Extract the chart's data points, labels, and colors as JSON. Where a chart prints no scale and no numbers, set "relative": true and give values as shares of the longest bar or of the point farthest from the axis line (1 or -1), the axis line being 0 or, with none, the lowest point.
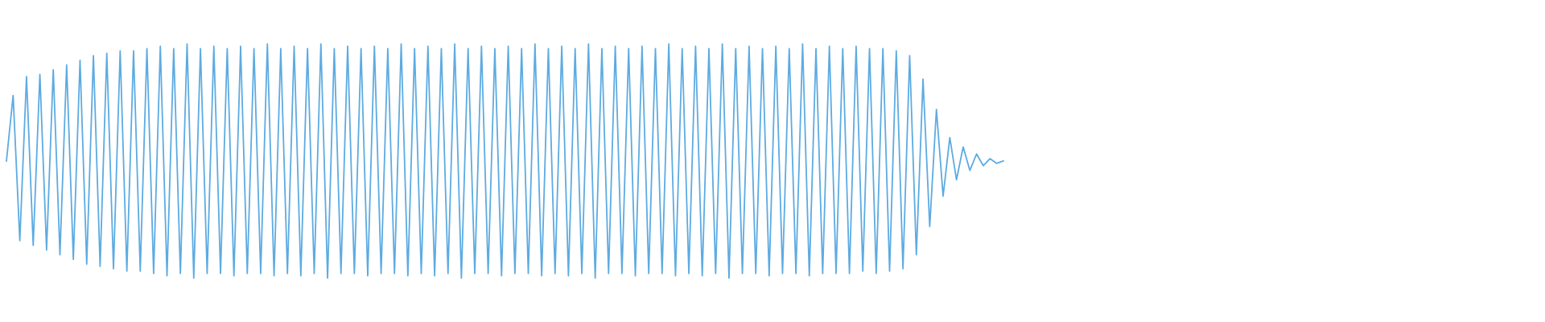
{
  "chart_data": {
    "type": "line",
    "relative": true,
    "color": "#5dabe2",
    "line_style": "solid",
    "marker": "none",
    "categories": [
      null,
      null,
      null,
      null,
      null,
      null,
      null,
      null,
      null,
      null,
      null,
      null,
      null,
      null,
      null,
      null,
      null,
      null,
      null,
      null,
      null,
      null,
      null,
      null,
      null,
      null,
      null,
      null,
      null,
      null,
      null,
      null,
      null,
      null,
      null,
      null,
      null,
      null,
      null,
      null,
      null,
      null,
      null,
      null,
      null,
      null,
      null,
      null,
      null,
      null,
      null,
      null,
      null,
      null,
      null,
      null,
      null,
      null,
      null,
      null,
      null,
      null,
      null,
      null,
      null,
      null,
      null,
      null,
      null,
      null,
      null,
      null,
      null,
      null,
      null,
      null,
      null,
      null,
      null,
      null,
      null,
      null,
      null,
      null,
      null,
      null,
      null,
      null,
      null,
      null,
      null,
      null,
      null,
      null,
      null,
      null,
      null,
      null,
      null,
      null,
      null,
      null,
      null,
      null,
      null,
      null,
      null,
      null,
      null,
      null,
      null,
      null,
      null,
      null,
      null,
      null,
      null,
      null,
      null,
      null,
      null,
      null,
      null,
      null,
      null,
      null,
      null,
      null,
      null,
      null,
      null,
      null,
      null,
      null,
      null,
      null,
      null,
      null,
      null,
      null,
      null,
      null,
      null,
      null,
      null,
      null,
      null,
      null,
      null,
      null,
      null,
      null,
      null,
      null,
      null,
      null,
      null,
      null,
      null,
      null,
      null,
      null,
      null,
      null,
      null,
      null,
      null,
      null,
      null,
      null,
      null,
      null,
      null,
      null,
      null,
      null,
      null,
      null,
      null,
      null,
      null,
      null,
      null,
      null,
      null,
      null,
      null,
      null,
      null,
      null,
      null,
      null,
      null,
      null,
      null,
      null,
      null,
      null,
      null,
      null,
      null,
      null,
      null,
      null,
      null,
      null,
      null,
      null,
      null,
      null,
      null,
      null,
      null,
      null,
      null,
      null,
      null,
      null,
      null,
      null,
      null,
      null,
      null,
      null,
      null,
      null,
      null,
      null,
      null,
      null
    ],
    "values": [
      0.5,
      0.78,
      0.16,
      0.86,
      0.14,
      0.87,
      0.12,
      0.89,
      0.1,
      0.91,
      0.08,
      0.93,
      0.06,
      0.95,
      0.05,
      0.96,
      0.04,
      0.97,
      0.03,
      0.97,
      0.03,
      0.98,
      0.02,
      0.99,
      0.01,
      0.98,
      0.02,
      1,
      0,
      0.98,
      0.02,
      0.99,
      0.02,
      0.98,
      0.01,
      0.99,
      0.02,
      0.98,
      0.02,
      1,
      0.01,
      0.98,
      0.02,
      0.99,
      0.01,
      0.98,
      0.02,
      1,
      0,
      0.98,
      0.02,
      0.99,
      0.02,
      0.98,
      0.01,
      0.99,
      0.02,
      0.98,
      0.02,
      1,
      0.01,
      0.98,
      0.02,
      0.99,
      0.01,
      0.98,
      0.02,
      1,
      0,
      0.98,
      0.02,
      0.99,
      0.02,
      0.98,
      0.01,
      0.99,
      0.02,
      0.98,
      0.02,
      1,
      0.01,
      0.98,
      0.02,
      0.99,
      0.01,
      0.98,
      0.02,
      1,
      0,
      0.98,
      0.02,
      0.99,
      0.02,
      0.98,
      0.01,
      0.99,
      0.02,
      0.98,
      0.02,
      1,
      0.01,
      0.98,
      0.02,
      0.99,
      0.01,
      0.98,
      0.02,
      1,
      0,
      0.98,
      0.02,
      0.99,
      0.02,
      0.98,
      0.01,
      0.99,
      0.02,
      0.98,
      0.02,
      1,
      0.01,
      0.98,
      0.02,
      0.99,
      0.02,
      0.98,
      0.02,
      0.99,
      0.03,
      0.98,
      0.02,
      0.98,
      0.03,
      0.97,
      0.04,
      0.95,
      0.1,
      0.85,
      0.22,
      0.72,
      0.35,
      0.6,
      0.42,
      0.56,
      0.46,
      0.53,
      0.48,
      0.51,
      0.49,
      0.5,
      null,
      null,
      null,
      null,
      null,
      null,
      null,
      null,
      null,
      null,
      null,
      null,
      null,
      null,
      null,
      null,
      null,
      null,
      null,
      null,
      null,
      null,
      null,
      null,
      null,
      null,
      null,
      null,
      null,
      null,
      null,
      null,
      null,
      null,
      null,
      null,
      null,
      null,
      null,
      null,
      null,
      null,
      null,
      null,
      null,
      null,
      null,
      null,
      null,
      null,
      null,
      null,
      null,
      null,
      null,
      null,
      null,
      null,
      null,
      null,
      null,
      null,
      null,
      null,
      null,
      null,
      null,
      null,
      null,
      null,
      null,
      null,
      null,
      null,
      null,
      null,
      null,
      null,
      null,
      null
    ]
  }
}
